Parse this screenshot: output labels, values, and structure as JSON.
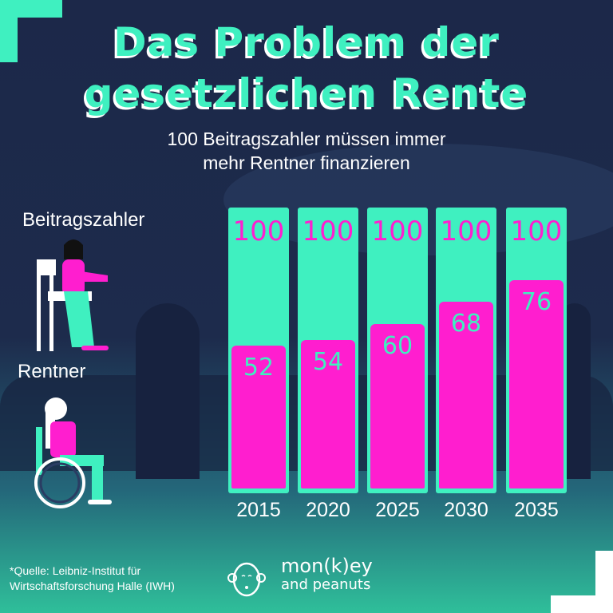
{
  "title_line1": "Das Problem der",
  "title_line2": "gesetzlichen Rente",
  "subtitle_line1": "100 Beitragszahler müssen  immer",
  "subtitle_line2": "mehr Rentner finanzieren",
  "legend": {
    "payers": "Beitragszahler",
    "retirees": "Rentner"
  },
  "source_line1": "*Quelle: Leibniz-Institut für",
  "source_line2": "Wirtschaftsforschung Halle (IWH)",
  "logo": {
    "line1": "mon(k)ey",
    "line2": "and peanuts"
  },
  "colors": {
    "payers": "#3ff0c0",
    "retirees": "#ff1ecf",
    "background": "#1c2849"
  },
  "chart_data": {
    "type": "bar",
    "title": "Das Problem der gesetzlichen Rente",
    "categories": [
      "2015",
      "2020",
      "2025",
      "2030",
      "2035"
    ],
    "series": [
      {
        "name": "Beitragszahler",
        "values": [
          100,
          100,
          100,
          100,
          100
        ],
        "labels": [
          "100",
          "100",
          "100",
          "100",
          "100"
        ]
      },
      {
        "name": "Rentner",
        "values": [
          52,
          54,
          60,
          68,
          76
        ],
        "labels": [
          "52",
          "54",
          "60",
          "68",
          "76"
        ]
      }
    ],
    "ylim": [
      0,
      100
    ]
  }
}
